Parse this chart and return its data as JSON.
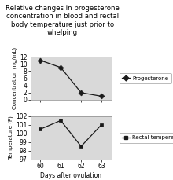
{
  "title": "Relative changes in progesterone\nconcentration in blood and rectal\nbody temperature just prior to\nwhelping",
  "title_fontsize": 6.2,
  "days": [
    60,
    61,
    62,
    63
  ],
  "progesterone": [
    11.0,
    9.0,
    2.0,
    1.0
  ],
  "rectal_temp": [
    100.5,
    101.5,
    98.5,
    101.0
  ],
  "prog_ylabel": "Concentration (ng/mL)",
  "temp_ylabel": "Temperature (F)",
  "xlabel": "Days after ovulation",
  "prog_ylim": [
    0,
    12
  ],
  "prog_yticks": [
    0,
    2,
    4,
    6,
    8,
    10,
    12
  ],
  "temp_ylim": [
    97,
    102
  ],
  "temp_yticks": [
    97,
    98,
    99,
    100,
    101,
    102
  ],
  "prog_legend": "Progesterone",
  "temp_legend": "Rectal temperature",
  "line_color": "#1a1a1a",
  "marker_prog": "D",
  "marker_temp": "s",
  "bg_color": "#d9d9d9",
  "fig_bg": "#ffffff"
}
